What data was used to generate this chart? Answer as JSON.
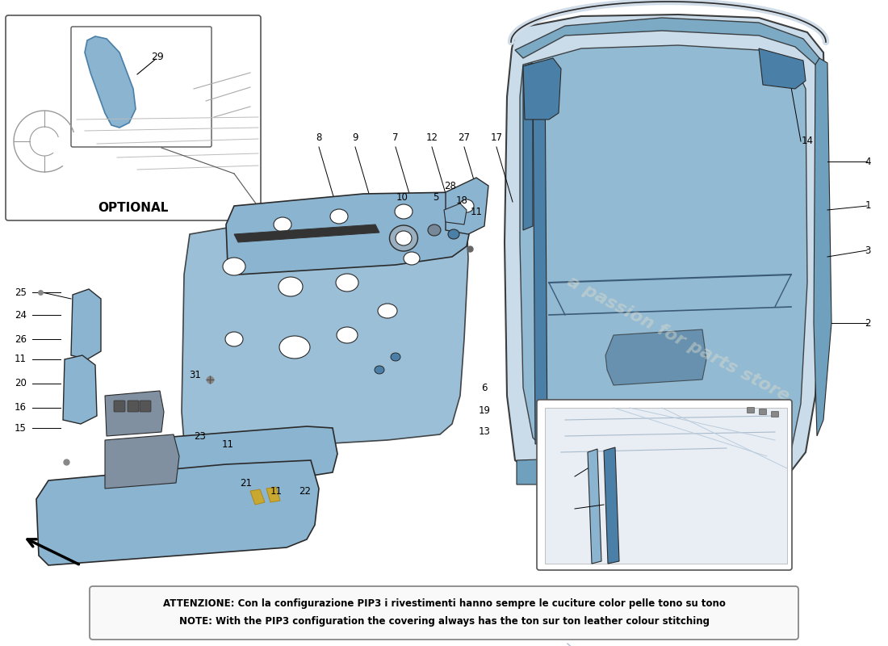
{
  "bg_color": "#ffffff",
  "note_line1": "ATTENZIONE: Con la configurazione PIP3 i rivestimenti hanno sempre le cuciture color pelle tono su tono",
  "note_line2": "NOTE: With the PIP3 configuration the covering always has the ton sur ton leather colour stitching",
  "optional_label": "OPTIONAL",
  "watermark": "a passion for parts store",
  "blue": "#8ab4d0",
  "blue_dark": "#4a7fa8",
  "blue_light": "#c5d9e8",
  "blue_mid": "#6fa0be",
  "outline": "#2a2a2a",
  "gray_line": "#777777"
}
